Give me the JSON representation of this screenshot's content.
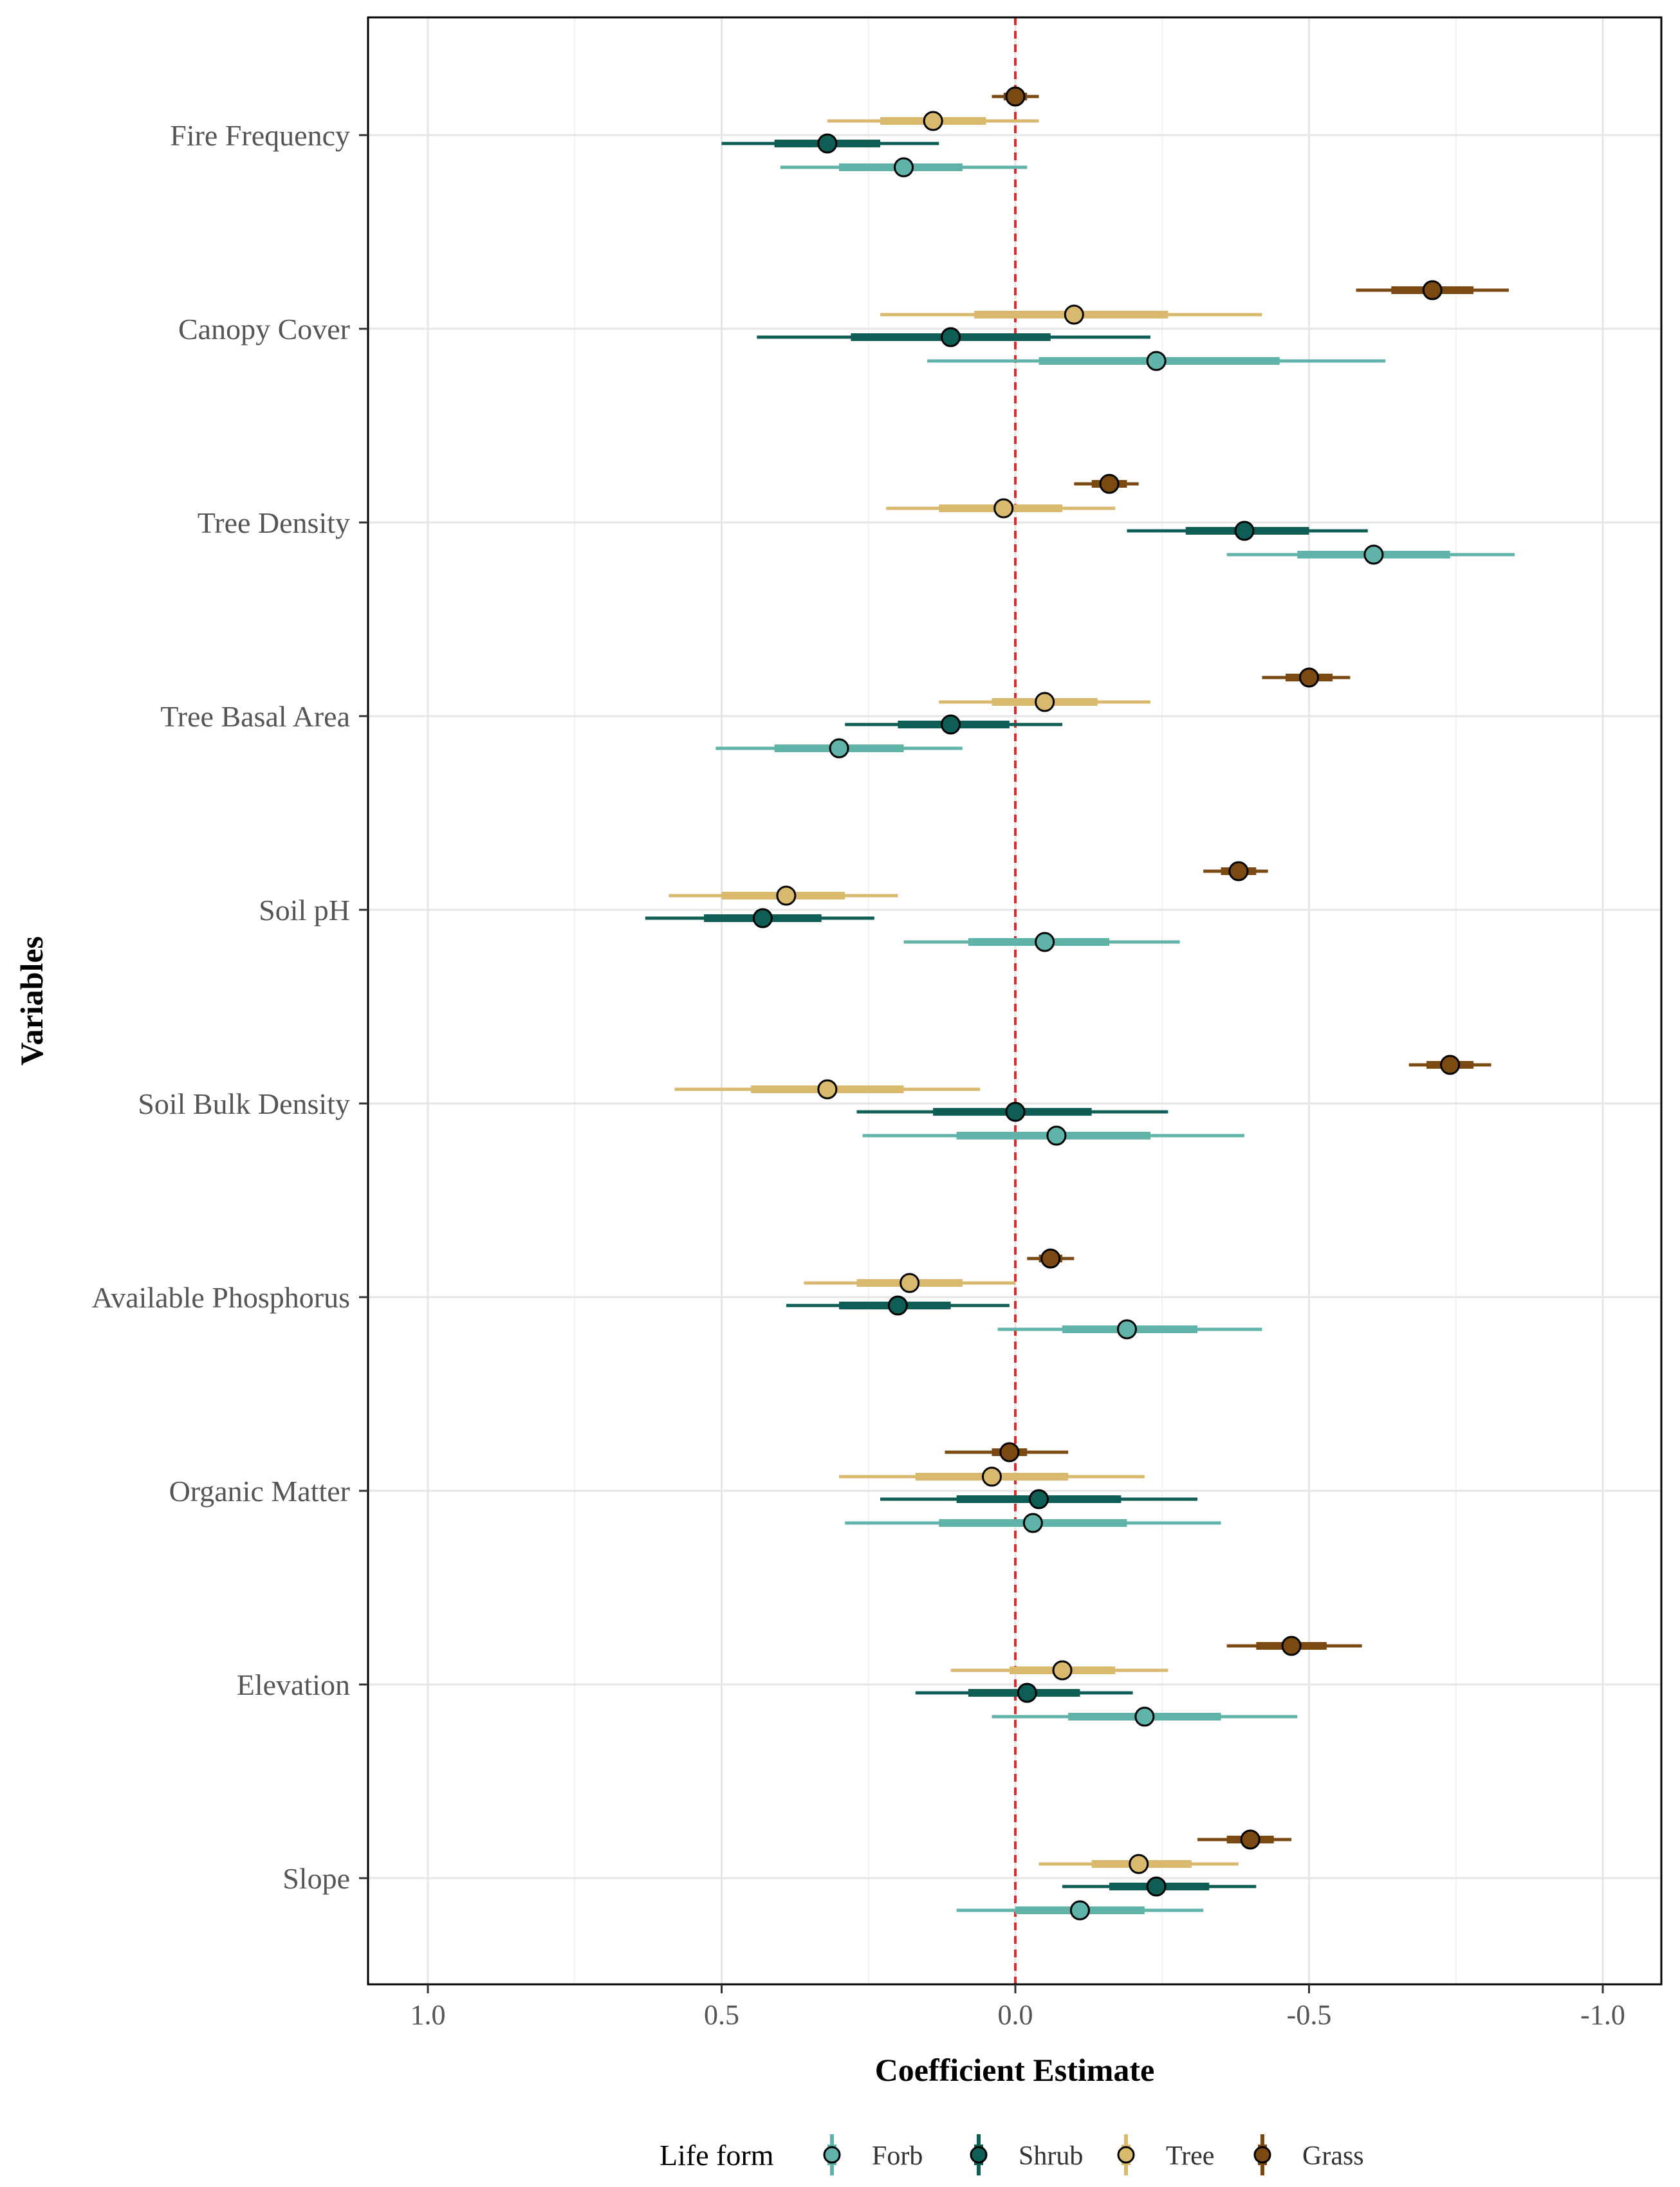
{
  "chart_data": {
    "type": "forest",
    "title": "",
    "xlabel": "Coefficient Estimate",
    "ylabel": "Variables",
    "x_reversed": true,
    "xlim": [
      1.1,
      -1.1
    ],
    "xticks": [
      1.0,
      0.5,
      0.0,
      -0.5,
      -1.0
    ],
    "xtick_labels": [
      "1.0",
      "0.5",
      "0.0",
      "-0.5",
      "-1.0"
    ],
    "reference_line": 0,
    "grid": true,
    "legend": {
      "title": "Life form",
      "position": "bottom"
    },
    "categories": [
      "Fire Frequency",
      "Canopy Cover",
      "Tree Density",
      "Tree Basal Area",
      "Soil pH",
      "Soil Bulk Density",
      "Available Phosphorus",
      "Organic Matter",
      "Elevation",
      "Slope"
    ],
    "series": [
      {
        "name": "Grass",
        "color": "#7B4A12",
        "estimates": [
          0.0,
          -0.71,
          -0.16,
          -0.5,
          -0.38,
          -0.74,
          -0.06,
          0.01,
          -0.47,
          -0.4
        ],
        "ci50": [
          [
            0.02,
            -0.02
          ],
          [
            -0.64,
            -0.78
          ],
          [
            -0.13,
            -0.19
          ],
          [
            -0.46,
            -0.54
          ],
          [
            -0.35,
            -0.41
          ],
          [
            -0.7,
            -0.78
          ],
          [
            -0.04,
            -0.08
          ],
          [
            0.04,
            -0.02
          ],
          [
            -0.41,
            -0.53
          ],
          [
            -0.36,
            -0.44
          ]
        ],
        "ci95": [
          [
            0.04,
            -0.04
          ],
          [
            -0.58,
            -0.84
          ],
          [
            -0.1,
            -0.21
          ],
          [
            -0.42,
            -0.57
          ],
          [
            -0.32,
            -0.43
          ],
          [
            -0.67,
            -0.81
          ],
          [
            -0.02,
            -0.1
          ],
          [
            0.12,
            -0.09
          ],
          [
            -0.36,
            -0.59
          ],
          [
            -0.31,
            -0.47
          ]
        ]
      },
      {
        "name": "Tree",
        "color": "#D9B96E",
        "estimates": [
          0.14,
          -0.1,
          0.02,
          -0.05,
          0.39,
          0.32,
          0.18,
          0.04,
          -0.08,
          -0.21
        ],
        "ci50": [
          [
            0.23,
            0.05
          ],
          [
            0.07,
            -0.26
          ],
          [
            0.13,
            -0.08
          ],
          [
            0.04,
            -0.14
          ],
          [
            0.5,
            0.29
          ],
          [
            0.45,
            0.19
          ],
          [
            0.27,
            0.09
          ],
          [
            0.17,
            -0.09
          ],
          [
            0.01,
            -0.17
          ],
          [
            -0.13,
            -0.3
          ]
        ],
        "ci95": [
          [
            0.32,
            -0.04
          ],
          [
            0.23,
            -0.42
          ],
          [
            0.22,
            -0.17
          ],
          [
            0.13,
            -0.23
          ],
          [
            0.59,
            0.2
          ],
          [
            0.58,
            0.06
          ],
          [
            0.36,
            0.0
          ],
          [
            0.3,
            -0.22
          ],
          [
            0.11,
            -0.26
          ],
          [
            -0.04,
            -0.38
          ]
        ]
      },
      {
        "name": "Shrub",
        "color": "#0E5E56",
        "estimates": [
          0.32,
          0.11,
          -0.39,
          0.11,
          0.43,
          0.0,
          0.2,
          -0.04,
          -0.02,
          -0.24
        ],
        "ci50": [
          [
            0.41,
            0.23
          ],
          [
            0.28,
            -0.06
          ],
          [
            -0.29,
            -0.5
          ],
          [
            0.2,
            0.01
          ],
          [
            0.53,
            0.33
          ],
          [
            0.14,
            -0.13
          ],
          [
            0.3,
            0.11
          ],
          [
            0.1,
            -0.18
          ],
          [
            0.08,
            -0.11
          ],
          [
            -0.16,
            -0.33
          ]
        ],
        "ci95": [
          [
            0.5,
            0.13
          ],
          [
            0.44,
            -0.23
          ],
          [
            -0.19,
            -0.6
          ],
          [
            0.29,
            -0.08
          ],
          [
            0.63,
            0.24
          ],
          [
            0.27,
            -0.26
          ],
          [
            0.39,
            0.01
          ],
          [
            0.23,
            -0.31
          ],
          [
            0.17,
            -0.2
          ],
          [
            -0.08,
            -0.41
          ]
        ]
      },
      {
        "name": "Forb",
        "color": "#5FB3A9",
        "estimates": [
          0.19,
          -0.24,
          -0.61,
          0.3,
          -0.05,
          -0.07,
          -0.19,
          -0.03,
          -0.22,
          -0.11
        ],
        "ci50": [
          [
            0.3,
            0.09
          ],
          [
            -0.04,
            -0.45
          ],
          [
            -0.48,
            -0.74
          ],
          [
            0.41,
            0.19
          ],
          [
            0.08,
            -0.16
          ],
          [
            0.1,
            -0.23
          ],
          [
            -0.08,
            -0.31
          ],
          [
            0.13,
            -0.19
          ],
          [
            -0.09,
            -0.35
          ],
          [
            0.0,
            -0.22
          ]
        ],
        "ci95": [
          [
            0.4,
            -0.02
          ],
          [
            0.15,
            -0.63
          ],
          [
            -0.36,
            -0.85
          ],
          [
            0.51,
            0.09
          ],
          [
            0.19,
            -0.28
          ],
          [
            0.26,
            -0.39
          ],
          [
            0.03,
            -0.42
          ],
          [
            0.29,
            -0.35
          ],
          [
            0.04,
            -0.48
          ],
          [
            0.1,
            -0.32
          ]
        ]
      }
    ],
    "legend_order": [
      "Forb",
      "Shrub",
      "Tree",
      "Grass"
    ]
  }
}
